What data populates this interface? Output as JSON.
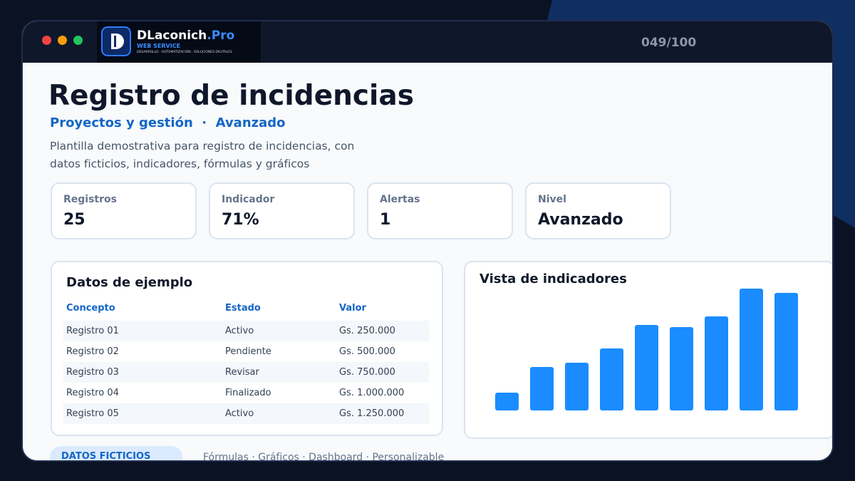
{
  "window": {
    "brand": "DLaconich",
    "brand_suffix": ".Pro",
    "brand_sub": "WEB SERVICE",
    "brand_tagline": "DESARROLLO · AUTOMATIZACIÓN · SOLUCIONES DIGITALES",
    "counter": "049/100"
  },
  "header": {
    "title": "Registro de incidencias",
    "subtitle": "Proyectos y gestión  ·  Avanzado",
    "description": "Plantilla demostrativa para registro de incidencias, con datos ficticios, indicadores, fórmulas y gráficos"
  },
  "stats": [
    {
      "label": "Registros",
      "value": "25"
    },
    {
      "label": "Indicador",
      "value": "71%"
    },
    {
      "label": "Alertas",
      "value": "1"
    },
    {
      "label": "Nivel",
      "value": "Avanzado"
    }
  ],
  "table": {
    "title": "Datos de ejemplo",
    "columns": [
      "Concepto",
      "Estado",
      "Valor"
    ],
    "rows": [
      [
        "Registro 01",
        "Activo",
        "Gs. 250.000"
      ],
      [
        "Registro 02",
        "Pendiente",
        "Gs. 500.000"
      ],
      [
        "Registro 03",
        "Revisar",
        "Gs. 750.000"
      ],
      [
        "Registro 04",
        "Finalizado",
        "Gs. 1.000.000"
      ],
      [
        "Registro 05",
        "Activo",
        "Gs. 1.250.000"
      ]
    ]
  },
  "chart": {
    "type": "bar",
    "title": "Vista de indicadores",
    "values": [
      25,
      61,
      67,
      87,
      120,
      117,
      132,
      171,
      165
    ],
    "color": "#1a8cff"
  },
  "footer": {
    "badge": "DATOS FICTICIOS",
    "tags": "Fórmulas · Gráficos · Dashboard · Personalizable"
  }
}
